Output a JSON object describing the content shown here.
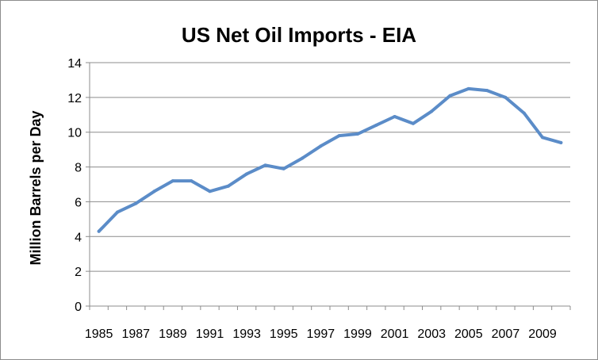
{
  "chart_data": {
    "type": "line",
    "title": "US Net Oil Imports - EIA",
    "xlabel": "",
    "ylabel": "Million Barrels per Day",
    "ylim": [
      0,
      14
    ],
    "yticks": [
      0,
      2,
      4,
      6,
      8,
      10,
      12,
      14
    ],
    "xticks": [
      1985,
      1987,
      1989,
      1991,
      1993,
      1995,
      1997,
      1999,
      2001,
      2003,
      2005,
      2007,
      2009
    ],
    "grid": true,
    "legend": "none",
    "series": [
      {
        "color": "#5b8cc8",
        "x": [
          1985,
          1986,
          1987,
          1988,
          1989,
          1990,
          1991,
          1992,
          1993,
          1994,
          1995,
          1996,
          1997,
          1998,
          1999,
          2000,
          2001,
          2002,
          2003,
          2004,
          2005,
          2006,
          2007,
          2008,
          2009,
          2010
        ],
        "values": [
          4.3,
          5.4,
          5.9,
          6.6,
          7.2,
          7.2,
          6.6,
          6.9,
          7.6,
          8.1,
          7.9,
          8.5,
          9.2,
          9.8,
          9.9,
          10.4,
          10.9,
          10.5,
          11.2,
          12.1,
          12.5,
          12.4,
          12.0,
          11.1,
          9.7,
          9.4
        ]
      }
    ]
  }
}
